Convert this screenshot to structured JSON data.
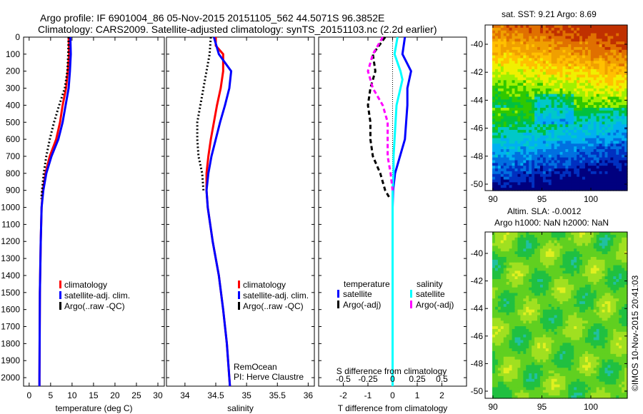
{
  "header": {
    "title": "Argo profile: IF 6901004_86 05-Nov-2015 20151105_562 44.5071S 96.3852E",
    "subtitle": "Climatology: CARS2009. Satellite-adjusted climatology: synTS_20151103.nc (2.2d earlier)"
  },
  "colors": {
    "climatology": "#ff0000",
    "satellite": "#0000ff",
    "argo": "#000000",
    "sal_satellite": "#00ffff",
    "sal_argo": "#ff00ff"
  },
  "chart_data": [
    {
      "type": "line",
      "name": "temperature",
      "xlabel": "temperature (deg C)",
      "xlim": [
        -1.3,
        31.5
      ],
      "ylim": [
        0,
        2050
      ],
      "xticks": [
        "0",
        "5",
        "10",
        "15",
        "20",
        "25",
        "30"
      ],
      "xtick_values": [
        0,
        5,
        10,
        15,
        20,
        25,
        30
      ],
      "yticks": [
        "0",
        "100",
        "200",
        "300",
        "400",
        "500",
        "600",
        "700",
        "800",
        "900",
        "1000",
        "1100",
        "1200",
        "1300",
        "1400",
        "1500",
        "1600",
        "1700",
        "1800",
        "1900",
        "2000"
      ],
      "legend": [
        "climatology",
        "satellite-adj. clim.",
        "Argo(..raw -QC)"
      ],
      "series": [
        {
          "name": "climatology",
          "depth": [
            0,
            100,
            200,
            300,
            400,
            500,
            600,
            700,
            800,
            900,
            1000,
            1200,
            1500,
            2000,
            2050
          ],
          "values": [
            9.2,
            9.3,
            9.0,
            8.6,
            7.8,
            7.2,
            6.3,
            4.8,
            3.8,
            3.2,
            2.9,
            2.7,
            2.5,
            2.4,
            2.4
          ]
        },
        {
          "name": "satellite-adj. clim.",
          "depth": [
            0,
            100,
            200,
            300,
            400,
            500,
            600,
            700,
            800,
            900,
            1000,
            1200,
            1500,
            2000,
            2050
          ],
          "values": [
            9.6,
            9.7,
            9.5,
            9.2,
            8.5,
            7.8,
            6.8,
            5.2,
            4.0,
            3.3,
            2.9,
            2.7,
            2.5,
            2.4,
            2.4
          ]
        },
        {
          "name": "Argo(..raw -QC)",
          "depth": [
            0,
            100,
            200,
            300,
            400,
            500,
            600,
            700,
            800,
            900,
            950
          ],
          "values": [
            9.2,
            9.1,
            8.9,
            8.3,
            7.0,
            5.8,
            4.8,
            4.0,
            3.4,
            3.0,
            2.8
          ]
        }
      ]
    },
    {
      "type": "line",
      "name": "salinity",
      "xlabel": "salinity",
      "xlim": [
        33.7,
        36.1
      ],
      "ylim": [
        0,
        2050
      ],
      "xticks": [
        "34",
        "34.5",
        "35",
        "35.5",
        "36"
      ],
      "xtick_values": [
        34,
        34.5,
        35,
        35.5,
        36
      ],
      "legend": [
        "climatology",
        "satellite-adj. clim.",
        "Argo(..raw -QC)"
      ],
      "annotation": [
        "RemOcean",
        "PI: Herve Claustre"
      ],
      "series": [
        {
          "name": "climatology",
          "depth": [
            0,
            50,
            100,
            200,
            300,
            400,
            500,
            600,
            700,
            800,
            900,
            1000,
            1200,
            1400,
            1600,
            1800,
            2000,
            2050
          ],
          "values": [
            34.5,
            34.5,
            34.62,
            34.62,
            34.58,
            34.52,
            34.47,
            34.42,
            34.38,
            34.35,
            34.35,
            34.37,
            34.45,
            34.55,
            34.62,
            34.68,
            34.72,
            34.73
          ]
        },
        {
          "name": "satellite-adj. clim.",
          "depth": [
            0,
            100,
            200,
            300,
            400,
            500,
            600,
            700,
            800,
            900,
            1000,
            1200,
            1400,
            1600,
            1800,
            2000,
            2050
          ],
          "values": [
            34.47,
            34.55,
            34.75,
            34.72,
            34.65,
            34.57,
            34.5,
            34.43,
            34.38,
            34.35,
            34.37,
            34.45,
            34.55,
            34.62,
            34.68,
            34.72,
            34.73
          ]
        },
        {
          "name": "Argo(..raw -QC)",
          "depth": [
            0,
            100,
            200,
            300,
            400,
            500,
            600,
            700,
            800,
            900
          ],
          "values": [
            34.42,
            34.4,
            34.35,
            34.3,
            34.25,
            34.2,
            34.2,
            34.22,
            34.28,
            34.3
          ]
        }
      ]
    },
    {
      "type": "line",
      "name": "difference",
      "xlabel": "T difference from climatology",
      "x2label": "S difference from climatology",
      "xlim": [
        -3,
        3
      ],
      "ylim": [
        0,
        2050
      ],
      "xticks": [
        "-2",
        "-1",
        "0",
        "1",
        "2"
      ],
      "xtick_values": [
        -2,
        -1,
        0,
        1,
        2
      ],
      "x2ticks": [
        "-0.5",
        "-0.25",
        "0",
        "0.25",
        "0.5"
      ],
      "x2tick_values": [
        -0.5,
        -0.25,
        0,
        0.25,
        0.5
      ],
      "legend": {
        "temperature_title": "temperature",
        "salinity_title": "salinity",
        "items": [
          "satellite",
          "Argo(-adj)",
          "satellite",
          "Argo(-adj)"
        ]
      },
      "series": [
        {
          "name": "T satellite",
          "depth": [
            0,
            100,
            200,
            300,
            400,
            500,
            600,
            700,
            800,
            900,
            1000,
            2050
          ],
          "values": [
            0.5,
            0.4,
            0.75,
            0.6,
            0.6,
            0.55,
            0.5,
            0.3,
            0.1,
            0.02,
            0,
            0
          ]
        },
        {
          "name": "S satellite",
          "units": "S",
          "depth": [
            0,
            100,
            200,
            250,
            300,
            400,
            500,
            600,
            700,
            800,
            900,
            2050
          ],
          "values": [
            0.05,
            0.02,
            0.08,
            0.1,
            0.08,
            0.04,
            0.03,
            0.02,
            0.01,
            0.01,
            0,
            0
          ]
        },
        {
          "name": "T Argo(-adj)",
          "depth": [
            0,
            100,
            200,
            300,
            400,
            500,
            600,
            700,
            800,
            900,
            950
          ],
          "values": [
            -0.3,
            -0.8,
            -0.7,
            -0.9,
            -1.0,
            -0.9,
            -0.9,
            -0.8,
            -0.5,
            -0.3,
            -0.1
          ]
        },
        {
          "name": "S Argo(-adj)",
          "units": "S",
          "depth": [
            0,
            100,
            200,
            300,
            400,
            500,
            600,
            700,
            800,
            900
          ],
          "values": [
            -0.1,
            -0.2,
            -0.25,
            -0.2,
            -0.1,
            -0.05,
            -0.05,
            -0.05,
            -0.02,
            0
          ]
        }
      ]
    },
    {
      "type": "heatmap",
      "name": "sst-map",
      "title": "sat. SST: 9.21 Argo: 8.69",
      "xticks": [
        "90",
        "95",
        "100"
      ],
      "yticks": [
        "-40",
        "-42",
        "-44",
        "-46",
        "-48",
        "-50"
      ]
    },
    {
      "type": "heatmap",
      "name": "sla-map",
      "title1": "Altim. SLA: -0.0012",
      "title2": "Argo h1000: NaN h2000: NaN",
      "xticks": [
        "90",
        "95",
        "100"
      ],
      "yticks": [
        "-40",
        "-42",
        "-44",
        "-46",
        "-48",
        "-50"
      ]
    }
  ],
  "footer": {
    "credit": "©IMOS 10-Nov-2015 20:41:03"
  }
}
